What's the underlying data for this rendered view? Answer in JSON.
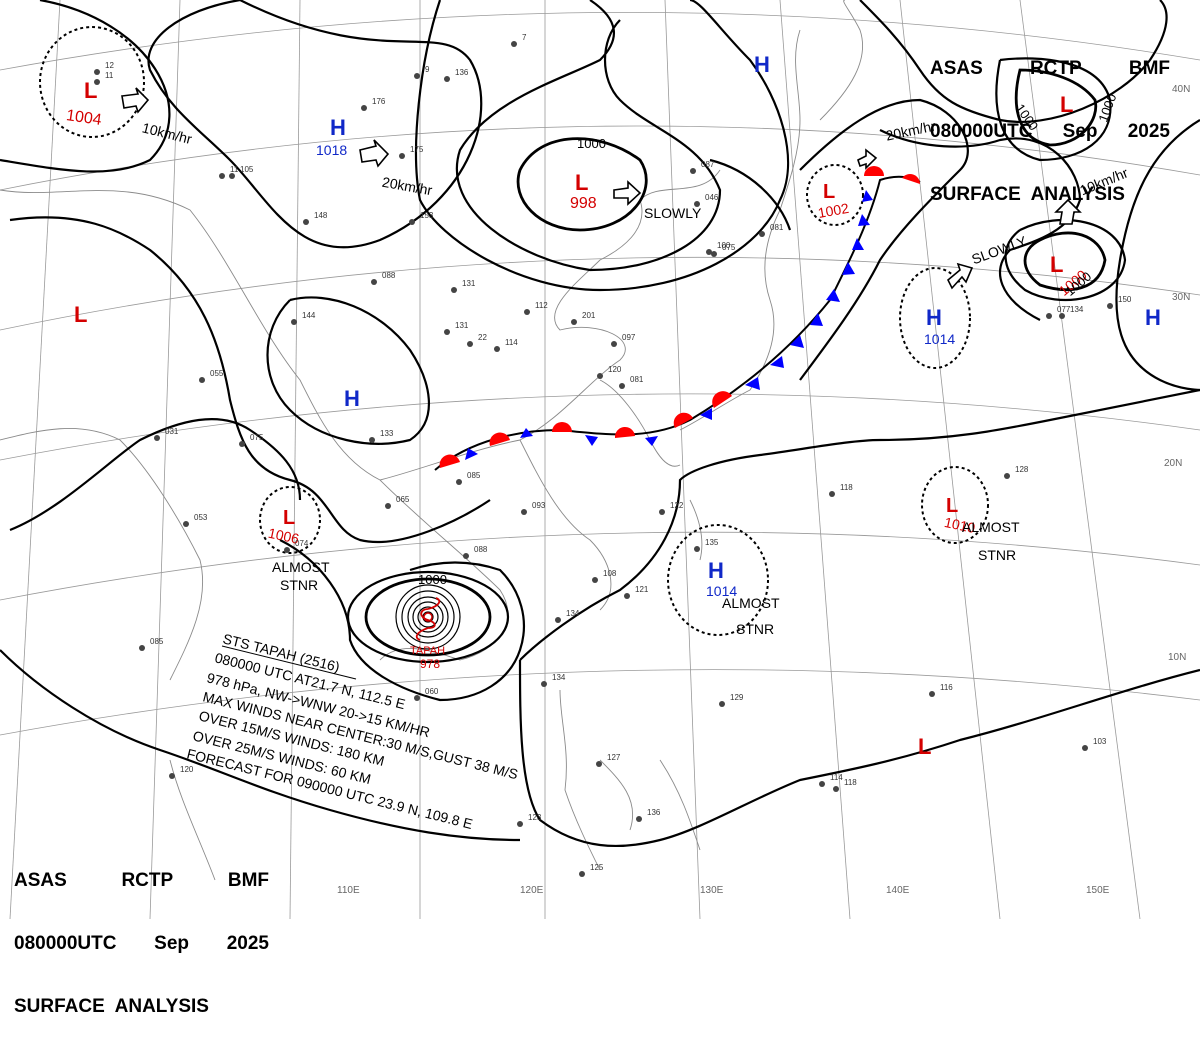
{
  "header": {
    "line1": [
      "ASAS",
      "RCTP",
      "BMF"
    ],
    "line2": [
      "080000UTC",
      "Sep",
      "2025"
    ],
    "line3": "SURFACE  ANALYSIS"
  },
  "colors": {
    "low": "#d40000",
    "high": "#1028c8",
    "warm_front": "#ff0000",
    "cold_front": "#0000ff",
    "isobar": "#000000"
  },
  "lon_labels": [
    "110E",
    "120E",
    "130E",
    "140E",
    "150E"
  ],
  "lat_labels": [
    "40N",
    "30N",
    "20N",
    "10N"
  ],
  "systems": [
    {
      "type": "L",
      "value": "1004"
    },
    {
      "type": "H",
      "value": "1018"
    },
    {
      "type": "L",
      "value": "998"
    },
    {
      "type": "H",
      "value": ""
    },
    {
      "type": "L",
      "value": ""
    },
    {
      "type": "L",
      "value": "1002"
    },
    {
      "type": "H",
      "value": "1014"
    },
    {
      "type": "L",
      "value": "1000"
    },
    {
      "type": "L",
      "value": ""
    },
    {
      "type": "H",
      "value": ""
    },
    {
      "type": "H",
      "value": ""
    },
    {
      "type": "L",
      "value": "1006"
    },
    {
      "type": "L",
      "value": "1010"
    },
    {
      "type": "H",
      "value": "1014"
    },
    {
      "type": "L",
      "value": ""
    }
  ],
  "isobar_labels": [
    "1000",
    "1000",
    "1000",
    "1000",
    "1000"
  ],
  "motion_labels": [
    "10km/hr",
    "20km/hr",
    "SLOWLY",
    "20km/hr",
    "SLOWLY",
    "10km/hr"
  ],
  "stnr_labels": [
    {
      "l1": "ALMOST",
      "l2": "STNR"
    },
    {
      "l1": "ALMOST",
      "l2": "STNR"
    },
    {
      "l1": "ALMOST",
      "l2": "STNR"
    }
  ],
  "typhoon": {
    "name": "TAPAH",
    "pressure": "978",
    "bulletin": [
      "STS  TAPAH  (2516)",
      "080000 UTC  AT21.7 N, 112.5 E",
      "978 hPa, NW->WNW  20->15 KM/HR",
      "MAX WINDS NEAR CENTER:30 M/S,GUST 38 M/S",
      "OVER 15M/S WINDS: 180 KM",
      "OVER 25M/S WINDS: 60 KM",
      "FORECAST FOR 090000 UTC 23.9 N, 109.8 E"
    ]
  },
  "stations": [
    "12",
    "11",
    "176",
    "175",
    "9",
    "136",
    "7",
    "131",
    "11",
    "105",
    "148",
    "153",
    "088",
    "131",
    "144",
    "22",
    "114",
    "112",
    "201",
    "097",
    "031",
    "055",
    "075",
    "133",
    "085",
    "053",
    "074",
    "065",
    "093",
    "088",
    "122",
    "108",
    "121",
    "134",
    "135",
    "129",
    "116",
    "103",
    "118",
    "114",
    "118",
    "128",
    "134",
    "127",
    "136",
    "123",
    "125",
    "120",
    "085",
    "060",
    "077",
    "134",
    "150",
    "087",
    "046",
    "100",
    "081",
    "075",
    "081",
    "120"
  ]
}
